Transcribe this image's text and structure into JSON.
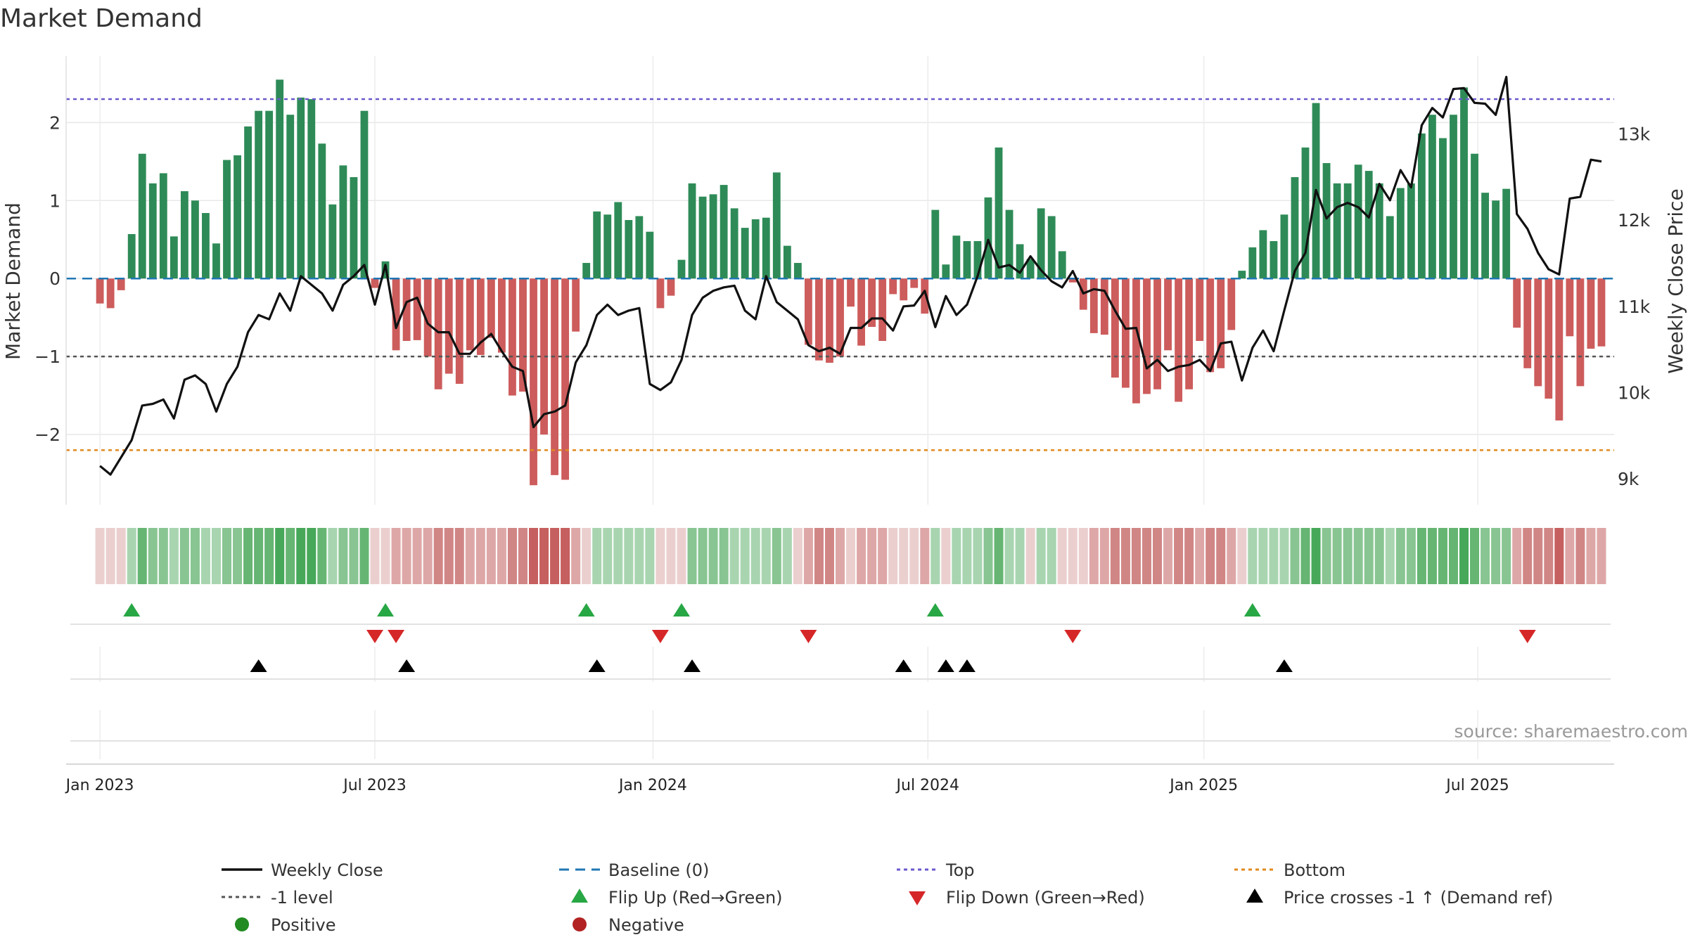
{
  "chart_data": {
    "type": "bar+line",
    "title": "Market Demand",
    "ylabel_left": "Market Demand",
    "ylabel_right": "Weekly Close Price",
    "source": "source: sharemaestro.com",
    "ylim_left": [
      -2.9,
      2.85
    ],
    "yticks_left": [
      2,
      1,
      0,
      -1,
      -2
    ],
    "ytick_labels_left": [
      "2",
      "1",
      "0",
      "−1",
      "−2"
    ],
    "ylim_right": [
      8700,
      13900
    ],
    "yticks_right": [
      13000,
      12000,
      11000,
      10000,
      9000
    ],
    "ytick_labels_right": [
      "13k",
      "12k",
      "11k",
      "10k",
      "9k"
    ],
    "x_range_weeks": [
      -3.2,
      143.2
    ],
    "xticks_week": [
      0,
      26,
      52.3,
      78.3,
      104.4,
      130.3
    ],
    "xtick_labels": [
      "Jan 2023",
      "Jul 2023",
      "Jan 2024",
      "Jul 2024",
      "Jan 2025",
      "Jul 2025"
    ],
    "levels": {
      "top": 2.3,
      "bottom": -2.2,
      "minus_one": -1,
      "baseline": 0
    },
    "colors": {
      "positive": "#2e8b57",
      "negative": "#cd5c5c",
      "price": "#111111",
      "top": "#6a5acd",
      "bottom": "#e08a1e",
      "minus_one": "#555555",
      "baseline": "#1f77b4",
      "flip_up": "#28a745",
      "flip_down": "#d62728",
      "cross": "#000000",
      "positive_dot": "#228b22",
      "negative_dot": "#b22222",
      "grid": "#e8e8e8",
      "axis_text": "#333333"
    },
    "demand_values": [
      -0.32,
      -0.38,
      -0.15,
      0.57,
      1.6,
      1.22,
      1.35,
      0.54,
      1.12,
      1.0,
      0.84,
      0.45,
      1.52,
      1.58,
      1.95,
      2.15,
      2.15,
      2.55,
      2.1,
      2.32,
      2.3,
      1.73,
      0.95,
      1.45,
      1.3,
      2.15,
      -0.12,
      0.22,
      -0.92,
      -0.8,
      -0.79,
      -1.0,
      -1.42,
      -1.22,
      -1.35,
      -0.92,
      -0.98,
      -0.76,
      -0.95,
      -1.5,
      -1.45,
      -2.65,
      -2.0,
      -2.52,
      -2.58,
      -0.68,
      0.2,
      0.86,
      0.82,
      0.98,
      0.75,
      0.8,
      0.6,
      -0.38,
      -0.22,
      0.24,
      1.22,
      1.05,
      1.08,
      1.2,
      0.9,
      0.65,
      0.76,
      0.78,
      1.36,
      0.42,
      0.2,
      -0.85,
      -1.05,
      -1.08,
      -1.0,
      -0.36,
      -0.86,
      -0.62,
      -0.8,
      -0.2,
      -0.28,
      -0.12,
      -0.45,
      0.88,
      0.18,
      0.55,
      0.48,
      0.48,
      1.04,
      1.68,
      0.88,
      0.44,
      0.25,
      0.9,
      0.8,
      0.35,
      -0.05,
      -0.4,
      -0.7,
      -0.72,
      -1.27,
      -1.4,
      -1.6,
      -1.48,
      -1.42,
      -0.92,
      -1.58,
      -1.42,
      -0.8,
      -1.2,
      -1.15,
      -0.66,
      0.1,
      0.4,
      0.62,
      0.48,
      0.82,
      1.3,
      1.68,
      2.25,
      1.48,
      1.22,
      1.22,
      1.46,
      1.38,
      1.22,
      0.8,
      1.16,
      1.22,
      1.86,
      2.1,
      1.8,
      2.1,
      2.45,
      1.6,
      1.1,
      1.0,
      1.15,
      -0.63,
      -1.15,
      -1.38,
      -1.54,
      -1.82,
      -0.74,
      -1.38,
      -0.9,
      -0.87
    ],
    "price_values": [
      9150,
      9050,
      9250,
      9450,
      9850,
      9870,
      9920,
      9700,
      10150,
      10200,
      10100,
      9780,
      10100,
      10300,
      10700,
      10900,
      10850,
      11150,
      10950,
      11350,
      11250,
      11150,
      10950,
      11250,
      11350,
      11480,
      11020,
      11480,
      10750,
      11050,
      11100,
      10800,
      10700,
      10700,
      10450,
      10450,
      10580,
      10680,
      10480,
      10300,
      10250,
      9600,
      9750,
      9780,
      9850,
      10350,
      10550,
      10900,
      11020,
      10900,
      10950,
      10980,
      10100,
      10030,
      10120,
      10380,
      10900,
      11100,
      11180,
      11220,
      11240,
      10950,
      10850,
      11350,
      11050,
      10950,
      10850,
      10550,
      10480,
      10520,
      10450,
      10750,
      10750,
      10860,
      10860,
      10720,
      11000,
      11010,
      11180,
      10760,
      11120,
      10900,
      11020,
      11350,
      11770,
      11450,
      11480,
      11390,
      11580,
      11420,
      11290,
      11220,
      11410,
      11150,
      11200,
      11180,
      10950,
      10740,
      10750,
      10280,
      10380,
      10250,
      10300,
      10320,
      10380,
      10250,
      10570,
      10590,
      10140,
      10520,
      10720,
      10480,
      10950,
      11410,
      11620,
      12350,
      12020,
      12150,
      12200,
      12150,
      12030,
      12420,
      12230,
      12580,
      12380,
      13100,
      13300,
      13190,
      13520,
      13530,
      13360,
      13350,
      13220,
      13660,
      12070,
      11900,
      11620,
      11430,
      11370,
      12250,
      12270,
      12700,
      12680
    ],
    "strength_bins": [
      -1.6,
      -1.0,
      -0.4,
      0.4,
      1.0,
      1.6,
      2.2
    ],
    "strength_colors": [
      "#c65f5f",
      "#d18686",
      "#dea7a7",
      "#ebcfcf",
      "#a8d5b0",
      "#88c592",
      "#66b573",
      "#47a85a"
    ],
    "flip_up_weeks": [
      3,
      27,
      46,
      55,
      79,
      109
    ],
    "flip_down_weeks": [
      26,
      28,
      53,
      67,
      92,
      135
    ],
    "cross_up_weeks": [
      15,
      29,
      47,
      56,
      76,
      80,
      82,
      112
    ],
    "legend": [
      {
        "label": "Weekly Close",
        "symbol": "solid-line",
        "color": "#111111"
      },
      {
        "label": "Baseline (0)",
        "symbol": "dashed-line",
        "color": "#1f77b4"
      },
      {
        "label": "Top",
        "symbol": "dotted-line",
        "color": "#6a5acd"
      },
      {
        "label": "Bottom",
        "symbol": "dotted-line",
        "color": "#e08a1e"
      },
      {
        "label": "-1 level",
        "symbol": "dotted-line",
        "color": "#555555"
      },
      {
        "label": "Flip Up (Red→Green)",
        "symbol": "triangle-up",
        "color": "#28a745"
      },
      {
        "label": "Flip Down (Green→Red)",
        "symbol": "triangle-down",
        "color": "#d62728"
      },
      {
        "label": "Price crosses -1 ↑ (Demand ref)",
        "symbol": "triangle-up",
        "color": "#000000"
      },
      {
        "label": "Positive",
        "symbol": "dot",
        "color": "#228b22"
      },
      {
        "label": "Negative",
        "symbol": "dot",
        "color": "#b22222"
      }
    ]
  }
}
